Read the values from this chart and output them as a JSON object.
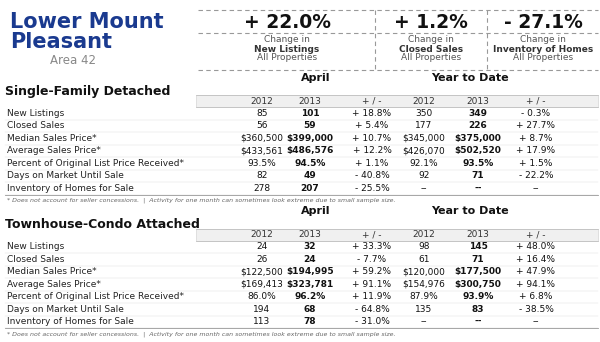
{
  "title_line1": "Lower Mount",
  "title_line2": "Pleasant",
  "subtitle": "Area 42",
  "title_color": "#1a3a8f",
  "subtitle_color": "#888888",
  "stat_values": [
    "+ 22.0%",
    "+ 1.2%",
    "- 27.1%"
  ],
  "stat_label1": [
    "Change in",
    "Change in",
    "Change in"
  ],
  "stat_label2": [
    "New Listings",
    "Closed Sales",
    "Inventory of Homes"
  ],
  "stat_label3": [
    "All Properties",
    "All Properties",
    "All Properties"
  ],
  "section1_title": "Single-Family Detached",
  "section2_title": "Townhouse-Condo Attached",
  "col_group_labels": [
    "April",
    "Year to Date"
  ],
  "sub_headers": [
    "2012",
    "2013",
    "+ / -",
    "2012",
    "2013",
    "+ / -"
  ],
  "section1_rows": [
    [
      "New Listings",
      "85",
      "101",
      "+ 18.8%",
      "350",
      "349",
      "- 0.3%"
    ],
    [
      "Closed Sales",
      "56",
      "59",
      "+ 5.4%",
      "177",
      "226",
      "+ 27.7%"
    ],
    [
      "Median Sales Price*",
      "$360,500",
      "$399,000",
      "+ 10.7%",
      "$345,000",
      "$375,000",
      "+ 8.7%"
    ],
    [
      "Average Sales Price*",
      "$433,561",
      "$486,576",
      "+ 12.2%",
      "$426,070",
      "$502,520",
      "+ 17.9%"
    ],
    [
      "Percent of Original List Price Received*",
      "93.5%",
      "94.5%",
      "+ 1.1%",
      "92.1%",
      "93.5%",
      "+ 1.5%"
    ],
    [
      "Days on Market Until Sale",
      "82",
      "49",
      "- 40.8%",
      "92",
      "71",
      "- 22.2%"
    ],
    [
      "Inventory of Homes for Sale",
      "278",
      "207",
      "- 25.5%",
      "--",
      "--",
      "--"
    ]
  ],
  "section1_footnote": "* Does not account for seller concessions.  |  Activity for one month can sometimes look extreme due to small sample size.",
  "section2_rows": [
    [
      "New Listings",
      "24",
      "32",
      "+ 33.3%",
      "98",
      "145",
      "+ 48.0%"
    ],
    [
      "Closed Sales",
      "26",
      "24",
      "- 7.7%",
      "61",
      "71",
      "+ 16.4%"
    ],
    [
      "Median Sales Price*",
      "$122,500",
      "$194,995",
      "+ 59.2%",
      "$120,000",
      "$177,500",
      "+ 47.9%"
    ],
    [
      "Average Sales Price*",
      "$169,413",
      "$323,781",
      "+ 91.1%",
      "$154,976",
      "$300,750",
      "+ 94.1%"
    ],
    [
      "Percent of Original List Price Received*",
      "86.0%",
      "96.2%",
      "+ 11.9%",
      "87.9%",
      "93.9%",
      "+ 6.8%"
    ],
    [
      "Days on Market Until Sale",
      "194",
      "68",
      "- 64.8%",
      "135",
      "83",
      "- 38.5%"
    ],
    [
      "Inventory of Homes for Sale",
      "113",
      "78",
      "- 31.0%",
      "--",
      "--",
      "--"
    ]
  ],
  "section2_footnote": "* Does not account for seller concessions.  |  Activity for one month can sometimes look extreme due to small sample size.",
  "bg_color": "#ffffff"
}
